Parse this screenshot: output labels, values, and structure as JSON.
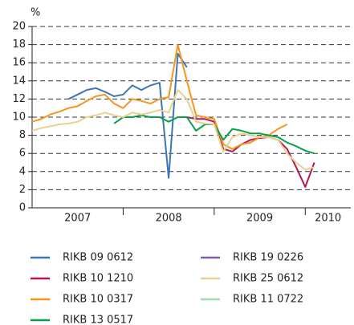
{
  "chart_data": {
    "type": "line",
    "y_label": "%",
    "x": [
      2007.0,
      2007.1,
      2007.2,
      2007.3,
      2007.4,
      2007.5,
      2007.6,
      2007.7,
      2007.8,
      2007.9,
      2008.0,
      2008.1,
      2008.2,
      2008.3,
      2008.4,
      2008.5,
      2008.6,
      2008.7,
      2008.8,
      2008.9,
      2009.0,
      2009.1,
      2009.2,
      2009.3,
      2009.4,
      2009.5,
      2009.6,
      2009.7,
      2009.8,
      2009.9,
      2010.0,
      2010.1
    ],
    "xlim": [
      2007,
      2010.5
    ],
    "xticks": [
      {
        "value": 2007,
        "label": "2007"
      },
      {
        "value": 2008,
        "label": "2008"
      },
      {
        "value": 2009,
        "label": "2009"
      },
      {
        "value": 2010,
        "label": "2010"
      }
    ],
    "ylim": [
      0,
      20
    ],
    "yticks": [
      0,
      2,
      4,
      6,
      8,
      10,
      12,
      14,
      16,
      18,
      20
    ],
    "grid": true,
    "legend": "bottom",
    "series": [
      {
        "name": "RIKB 09 0612",
        "color": "#3a75b8",
        "values": [
          null,
          null,
          null,
          null,
          12,
          12.5,
          13,
          13.2,
          12.8,
          12.3,
          12.5,
          13.5,
          13,
          13.5,
          13.8,
          3.3,
          17,
          15.5,
          null,
          null,
          null,
          null,
          null,
          null,
          null,
          null,
          null,
          null,
          null,
          null,
          null,
          null
        ]
      },
      {
        "name": "RIKB 10 1210",
        "color": "#b5155a",
        "values": [
          null,
          null,
          null,
          null,
          null,
          null,
          null,
          null,
          null,
          null,
          null,
          null,
          null,
          null,
          null,
          null,
          null,
          10,
          9.8,
          9.8,
          9.5,
          6.5,
          6.2,
          7,
          7.5,
          7.7,
          7.8,
          7.5,
          6.5,
          4.5,
          2.3,
          5
        ]
      },
      {
        "name": "RIKB 10 0317",
        "color": "#f7941d",
        "values": [
          9.5,
          9.8,
          10.3,
          10.6,
          11,
          11.2,
          11.8,
          12.3,
          12.5,
          11.5,
          11,
          12,
          11.8,
          11.5,
          12,
          12.2,
          18,
          14,
          10.2,
          10,
          9.8,
          7,
          6.5,
          7,
          7.2,
          7.8,
          8,
          8.7,
          9.2,
          null,
          null,
          null
        ]
      },
      {
        "name": "RIKB 13 0517",
        "color": "#0aa04b",
        "values": [
          null,
          null,
          null,
          null,
          null,
          null,
          null,
          null,
          null,
          9.3,
          10,
          10,
          10.2,
          10,
          10,
          9.5,
          10,
          10,
          8.5,
          9.2,
          9.2,
          7.5,
          8.7,
          8.5,
          8.2,
          8.2,
          8,
          7.8,
          7.2,
          6.8,
          6.3,
          6
        ]
      },
      {
        "name": "RIKB 19 0226",
        "color": "#7b5ea7",
        "values": [
          null,
          null,
          null,
          null,
          null,
          null,
          null,
          null,
          null,
          null,
          null,
          null,
          null,
          null,
          null,
          null,
          null,
          null,
          null,
          null,
          null,
          null,
          null,
          null,
          null,
          null,
          null,
          null,
          null,
          null,
          null,
          null
        ]
      },
      {
        "name": "RIKB 25 0612",
        "color": "#e8d08f",
        "values": [
          8.5,
          8.8,
          9,
          9.2,
          9.3,
          9.5,
          10,
          10.2,
          10.5,
          10.2,
          10,
          10.5,
          10.3,
          10.5,
          10.8,
          10.5,
          13,
          12,
          9.5,
          9.3,
          9.2,
          6.2,
          7.8,
          8.2,
          8,
          7.8,
          7.8,
          7.5,
          6,
          5,
          4.2,
          4.5
        ]
      },
      {
        "name": "RIKB 11 0722",
        "color": "#a8d8b0",
        "values": [
          null,
          null,
          null,
          null,
          null,
          null,
          null,
          null,
          null,
          null,
          null,
          null,
          null,
          null,
          null,
          null,
          null,
          null,
          null,
          null,
          null,
          null,
          null,
          null,
          null,
          null,
          null,
          null,
          null,
          null,
          null,
          null
        ]
      }
    ]
  }
}
